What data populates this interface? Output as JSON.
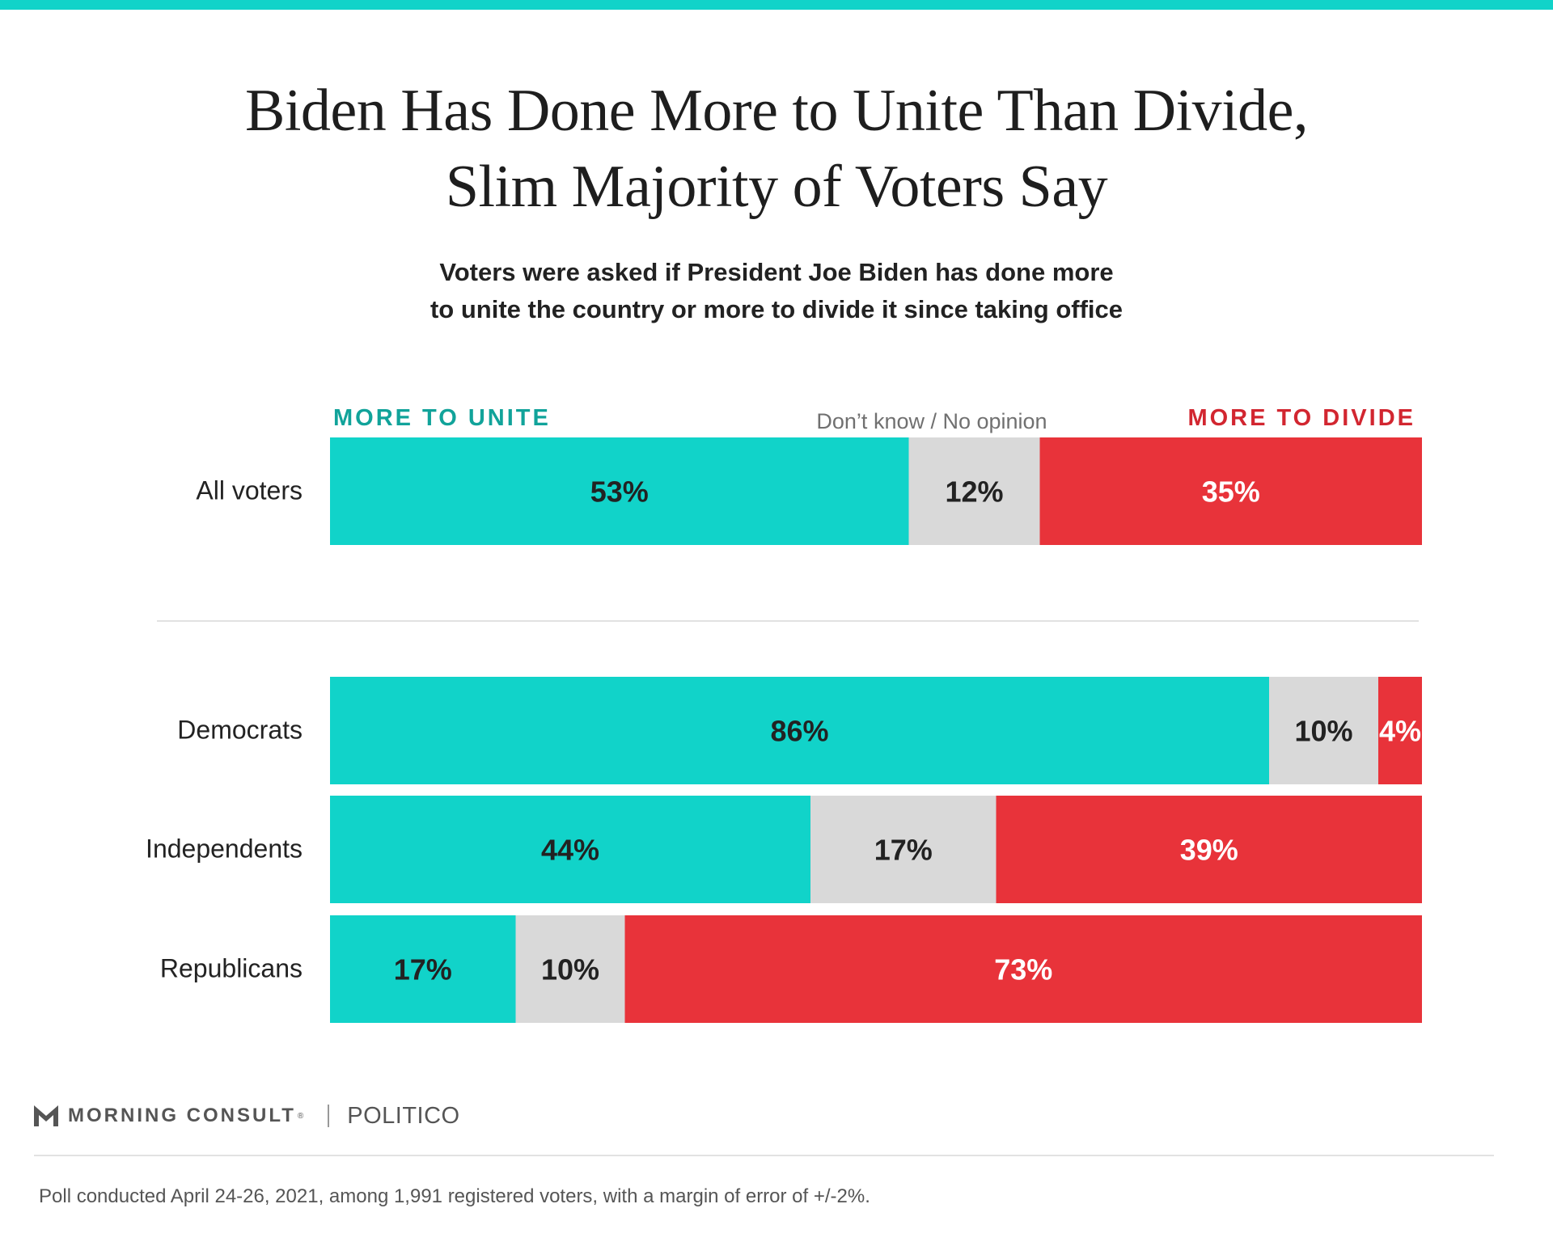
{
  "title_line1": "Biden Has Done More to Unite Than Divide,",
  "title_line2": "Slim Majority of Voters Say",
  "subtitle_line1": "Voters were asked if President Joe Biden has done more",
  "subtitle_line2": "to unite the country or more to divide it since taking office",
  "colors": {
    "unite": "#11d3c9",
    "no_opinion": "#d9d9d9",
    "divide": "#e8333a",
    "unite_heading": "#11a39a",
    "divide_heading": "#d22630",
    "neutral_heading": "#707070"
  },
  "chart_data": {
    "type": "bar",
    "orientation": "horizontal",
    "stacked": true,
    "percent_scale": [
      0,
      100
    ],
    "categories": [
      "All voters",
      "Democrats",
      "Independents",
      "Republicans"
    ],
    "series": [
      {
        "name": "MORE TO UNITE",
        "values": [
          53,
          86,
          44,
          17
        ]
      },
      {
        "name": "Don’t know / No opinion",
        "values": [
          12,
          10,
          17,
          10
        ]
      },
      {
        "name": "MORE TO DIVIDE",
        "values": [
          35,
          4,
          39,
          73
        ]
      }
    ],
    "data_label_suffix": "%"
  },
  "brand": {
    "name": "MORNING CONSULT",
    "trademark": "®",
    "partner": "POLITICO",
    "logo_icon": "morning-consult-m-icon"
  },
  "footnote": "Poll conducted April 24-26, 2021, among 1,991 registered voters, with a margin of error of +/-2%."
}
